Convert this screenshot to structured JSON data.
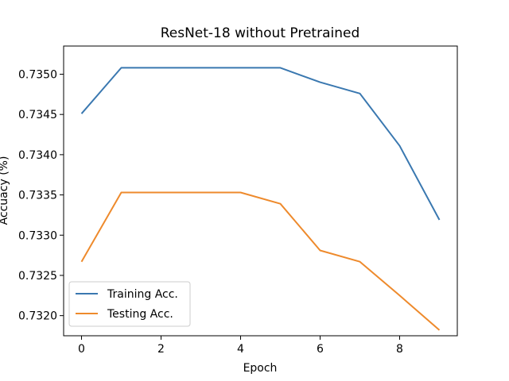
{
  "chart_data": {
    "type": "line",
    "title": "ResNet-18 without Pretrained",
    "xlabel": "Epoch",
    "ylabel": "Accuacy (%)",
    "x": [
      0,
      1,
      2,
      3,
      4,
      5,
      6,
      7,
      8,
      9
    ],
    "xlim": [
      -0.45,
      9.45
    ],
    "ylim": [
      0.73175,
      0.73535
    ],
    "xticks": [
      0,
      2,
      4,
      6,
      8
    ],
    "xtick_labels": [
      "0",
      "2",
      "4",
      "6",
      "8"
    ],
    "yticks": [
      0.732,
      0.7325,
      0.733,
      0.7335,
      0.734,
      0.7345,
      0.735
    ],
    "ytick_labels": [
      "0.7320",
      "0.7325",
      "0.7330",
      "0.7335",
      "0.7340",
      "0.7345",
      "0.7350"
    ],
    "grid": false,
    "legend_position": "lower-left",
    "series": [
      {
        "name": "Training Acc.",
        "color": "#3a78b0",
        "values": [
          0.73451,
          0.73508,
          0.73508,
          0.73508,
          0.73508,
          0.73508,
          0.7349,
          0.73476,
          0.73411,
          0.73319
        ]
      },
      {
        "name": "Testing Acc.",
        "color": "#ee8a2c",
        "values": [
          0.73267,
          0.73353,
          0.73353,
          0.73353,
          0.73353,
          0.73339,
          0.73281,
          0.73267,
          0.73225,
          0.73182
        ]
      }
    ]
  }
}
